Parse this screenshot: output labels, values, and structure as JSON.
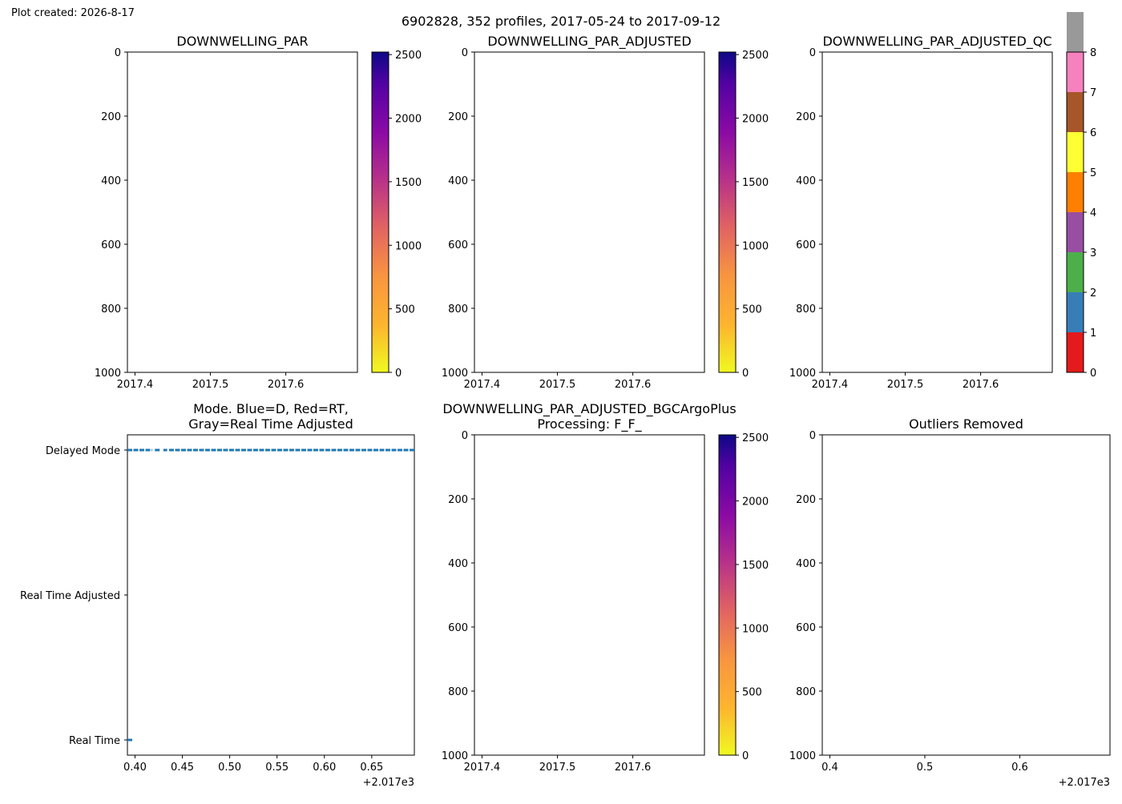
{
  "created_label": "Plot created: 2026-8-17",
  "suptitle": "6902828, 352 profiles, 2017-05-24 to 2017-09-12",
  "chart_data": [
    {
      "type": "heatmap",
      "title": "DOWNWELLING_PAR",
      "xlim": [
        2017.39,
        2017.695
      ],
      "xticks": [
        "2017.4",
        "2017.5",
        "2017.6"
      ],
      "ylim": [
        0,
        1000
      ],
      "yticks": [
        "0",
        "200",
        "400",
        "600",
        "800",
        "1000"
      ],
      "y_inverted": true,
      "colorbar": {
        "colormap": "plasma_r",
        "range": [
          0,
          2520
        ],
        "ticks": [
          "0",
          "500",
          "1000",
          "1500",
          "2000",
          "2500"
        ]
      },
      "values": []
    },
    {
      "type": "heatmap",
      "title": "DOWNWELLING_PAR_ADJUSTED",
      "xlim": [
        2017.39,
        2017.695
      ],
      "xticks": [
        "2017.4",
        "2017.5",
        "2017.6"
      ],
      "ylim": [
        0,
        1000
      ],
      "yticks": [
        "0",
        "200",
        "400",
        "600",
        "800",
        "1000"
      ],
      "y_inverted": true,
      "colorbar": {
        "colormap": "plasma_r",
        "range": [
          0,
          2520
        ],
        "ticks": [
          "0",
          "500",
          "1000",
          "1500",
          "2000",
          "2500"
        ]
      },
      "values": []
    },
    {
      "type": "heatmap",
      "title": "DOWNWELLING_PAR_ADJUSTED_QC",
      "xlim": [
        2017.39,
        2017.695
      ],
      "xticks": [
        "2017.4",
        "2017.5",
        "2017.6"
      ],
      "ylim": [
        0,
        1000
      ],
      "yticks": [
        "0",
        "200",
        "400",
        "600",
        "800",
        "1000"
      ],
      "y_inverted": true,
      "colorbar": {
        "colormap": "categorical",
        "range": [
          0,
          8
        ],
        "ticks": [
          "0",
          "1",
          "2",
          "3",
          "4",
          "5",
          "6",
          "7",
          "8"
        ],
        "colors": [
          "#e41a1c",
          "#377eb8",
          "#4daf4a",
          "#984ea3",
          "#ff7f00",
          "#ffff33",
          "#a65628",
          "#f781bf",
          "#999999"
        ]
      },
      "values": []
    },
    {
      "type": "scatter",
      "title": "Mode. Blue=D, Red=RT, Gray=Real Time Adjusted",
      "title_lines": [
        "Mode. Blue=D, Red=RT,",
        "Gray=Real Time Adjusted"
      ],
      "xlim": [
        0.392,
        0.695
      ],
      "xticks": [
        "0.40",
        "0.45",
        "0.50",
        "0.55",
        "0.60",
        "0.65"
      ],
      "x_offset_label": "+2.017e3",
      "yticks": [
        "Delayed Mode",
        "Real Time Adjusted",
        "Real Time"
      ],
      "series": [
        {
          "name": "Delayed Mode",
          "color": "#1f77b4",
          "segments": [
            [
              0.392,
              0.418
            ],
            [
              0.421,
              0.427
            ],
            [
              0.43,
              0.434
            ],
            [
              0.436,
              0.695
            ]
          ]
        },
        {
          "name": "Real Time",
          "color": "#1f77b4",
          "segments": [
            [
              0.392,
              0.398
            ]
          ]
        }
      ]
    },
    {
      "type": "heatmap",
      "title": "DOWNWELLING_PAR_ADJUSTED_BGCArgoPlus Processing: F_F_",
      "title_lines": [
        "DOWNWELLING_PAR_ADJUSTED_BGCArgoPlus",
        "Processing: F_F_"
      ],
      "xlim": [
        2017.39,
        2017.695
      ],
      "xticks": [
        "2017.4",
        "2017.5",
        "2017.6"
      ],
      "ylim": [
        0,
        1000
      ],
      "yticks": [
        "0",
        "200",
        "400",
        "600",
        "800",
        "1000"
      ],
      "y_inverted": true,
      "colorbar": {
        "colormap": "plasma_r",
        "range": [
          0,
          2520
        ],
        "ticks": [
          "0",
          "500",
          "1000",
          "1500",
          "2000",
          "2500"
        ]
      },
      "values": []
    },
    {
      "type": "scatter",
      "title": "Outliers Removed",
      "xlim": [
        0.392,
        0.695
      ],
      "xticks": [
        "0.4",
        "0.5",
        "0.6"
      ],
      "x_offset_label": "+2.017e3",
      "ylim": [
        0,
        1000
      ],
      "yticks": [
        "0",
        "200",
        "400",
        "600",
        "800",
        "1000"
      ],
      "y_inverted": true,
      "values": []
    }
  ]
}
